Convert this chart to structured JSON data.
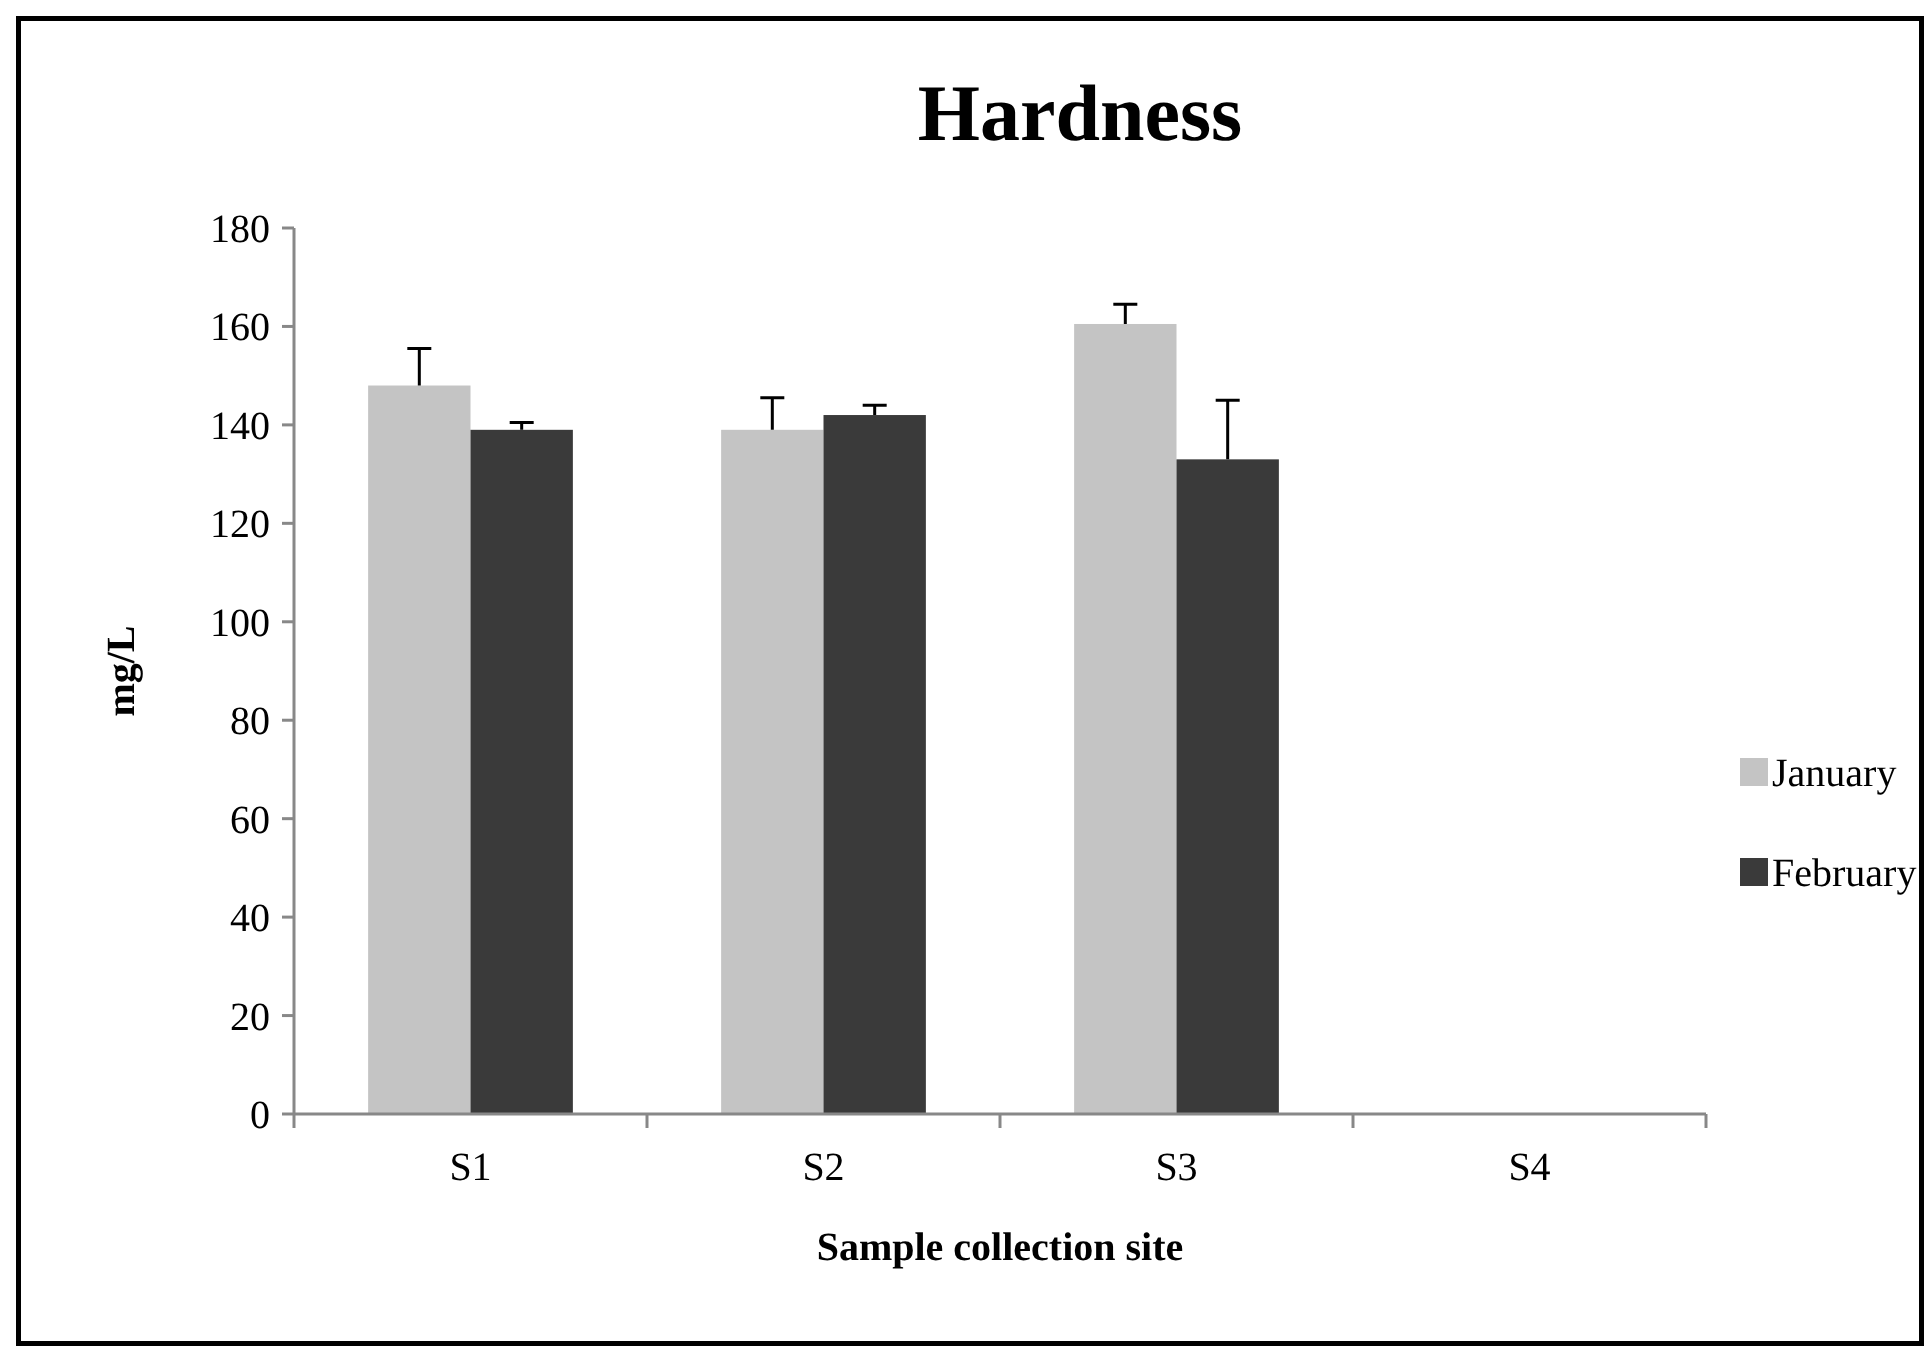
{
  "chart_data": {
    "type": "bar",
    "title": "Hardness",
    "xlabel": "Sample collection site",
    "ylabel": "mg/L",
    "categories": [
      "S1",
      "S2",
      "S3",
      "S4"
    ],
    "series": [
      {
        "name": "January",
        "color": "#c4c4c4",
        "values": [
          148,
          139,
          160.5,
          0
        ],
        "errors": [
          [
            148,
            155.5
          ],
          [
            139,
            145.5
          ],
          [
            160.5,
            164.5
          ],
          null
        ]
      },
      {
        "name": "February",
        "color": "#3a3a3a",
        "values": [
          139,
          142,
          133,
          0
        ],
        "errors": [
          [
            139,
            140.5
          ],
          [
            142,
            144
          ],
          [
            133,
            145
          ],
          null
        ]
      }
    ],
    "ylim": [
      0,
      180
    ],
    "yticks": [
      0,
      20,
      40,
      60,
      80,
      100,
      120,
      140,
      160,
      180
    ],
    "grid": false,
    "legend": "right"
  }
}
